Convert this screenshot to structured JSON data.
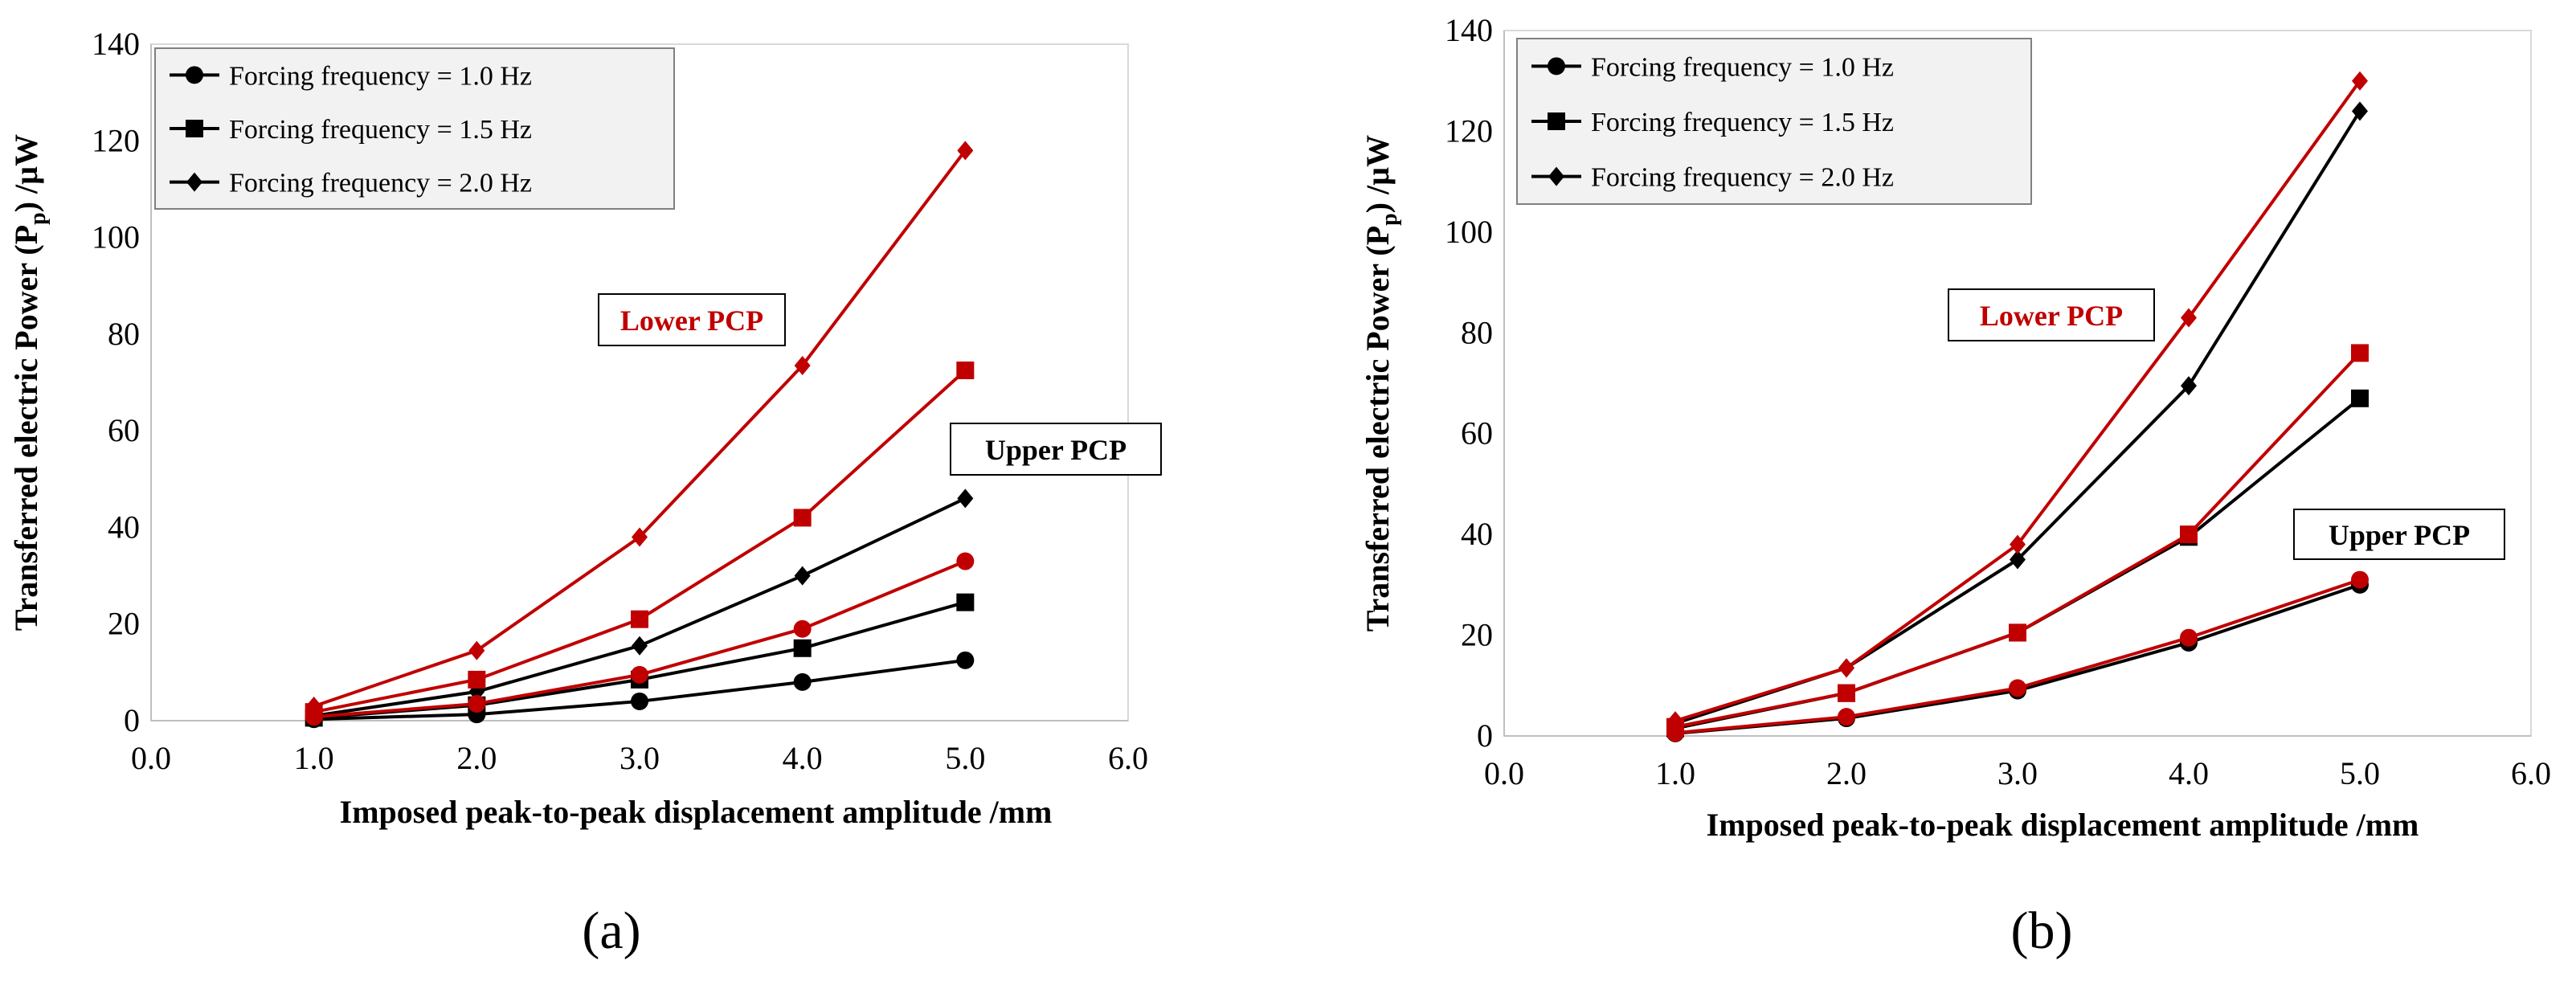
{
  "colors": {
    "upper": "#000000",
    "lower": "#C00000"
  },
  "chart_data": [
    {
      "type": "line",
      "panel_label": "(a)",
      "xlabel": "Imposed peak-to-peak displacement amplitude /mm",
      "ylabel_parts": {
        "main": "Transferred electric Power (P",
        "sub": "p",
        "tail": ") /µW"
      },
      "xlim": [
        0,
        6
      ],
      "ylim": [
        0,
        140
      ],
      "x_ticks": [
        "0.0",
        "1.0",
        "2.0",
        "3.0",
        "4.0",
        "5.0",
        "6.0"
      ],
      "y_ticks": [
        "0",
        "20",
        "40",
        "60",
        "80",
        "100",
        "120",
        "140"
      ],
      "x": [
        1.0,
        2.0,
        3.0,
        4.0,
        5.0
      ],
      "legend": [
        {
          "label": "Forcing frequency = 1.0 Hz",
          "marker": "circle"
        },
        {
          "label": "Forcing frequency = 1.5 Hz",
          "marker": "square"
        },
        {
          "label": "Forcing frequency = 2.0 Hz",
          "marker": "diamond"
        }
      ],
      "legend_position": "top-left",
      "grid": false,
      "annotations": [
        {
          "text": "Lower PCP",
          "group": "lower"
        },
        {
          "text": "Upper PCP",
          "group": "upper"
        }
      ],
      "series": [
        {
          "group": "upper",
          "marker": "circle",
          "values": [
            0.3,
            1.3,
            4.0,
            8.0,
            12.5
          ]
        },
        {
          "group": "upper",
          "marker": "square",
          "values": [
            0.6,
            3.2,
            8.5,
            15.0,
            24.5
          ]
        },
        {
          "group": "upper",
          "marker": "diamond",
          "values": [
            1.0,
            6.0,
            15.5,
            30.0,
            46.0
          ]
        },
        {
          "group": "lower",
          "marker": "circle",
          "values": [
            0.8,
            3.5,
            9.5,
            19.0,
            33.0
          ]
        },
        {
          "group": "lower",
          "marker": "square",
          "values": [
            1.8,
            8.5,
            21.0,
            42.0,
            72.5
          ]
        },
        {
          "group": "lower",
          "marker": "diamond",
          "values": [
            3.0,
            14.5,
            38.0,
            73.5,
            118.0
          ]
        }
      ]
    },
    {
      "type": "line",
      "panel_label": "(b)",
      "xlabel": "Imposed peak-to-peak displacement amplitude /mm",
      "ylabel_parts": {
        "main": "Transferred electric Power (P",
        "sub": "p",
        "tail": ") /µW"
      },
      "xlim": [
        0,
        6
      ],
      "ylim": [
        0,
        140
      ],
      "x_ticks": [
        "0.0",
        "1.0",
        "2.0",
        "3.0",
        "4.0",
        "5.0",
        "6.0"
      ],
      "y_ticks": [
        "0",
        "20",
        "40",
        "60",
        "80",
        "100",
        "120",
        "140"
      ],
      "x": [
        1.0,
        2.0,
        3.0,
        4.0,
        5.0
      ],
      "legend": [
        {
          "label": "Forcing frequency = 1.0 Hz",
          "marker": "circle"
        },
        {
          "label": "Forcing frequency = 1.5 Hz",
          "marker": "square"
        },
        {
          "label": "Forcing frequency = 2.0 Hz",
          "marker": "diamond"
        }
      ],
      "legend_position": "top-left",
      "grid": false,
      "annotations": [
        {
          "text": "Lower PCP",
          "group": "lower"
        },
        {
          "text": "Upper PCP",
          "group": "upper"
        }
      ],
      "series": [
        {
          "group": "upper",
          "marker": "circle",
          "values": [
            0.5,
            3.5,
            9.0,
            18.5,
            30.0
          ]
        },
        {
          "group": "upper",
          "marker": "square",
          "values": [
            1.5,
            8.5,
            20.5,
            39.5,
            67.0
          ]
        },
        {
          "group": "upper",
          "marker": "diamond",
          "values": [
            2.5,
            13.5,
            35.0,
            69.5,
            124.0
          ]
        },
        {
          "group": "lower",
          "marker": "circle",
          "values": [
            0.6,
            3.8,
            9.5,
            19.5,
            31.0
          ]
        },
        {
          "group": "lower",
          "marker": "square",
          "values": [
            1.8,
            8.5,
            20.5,
            40.0,
            76.0
          ]
        },
        {
          "group": "lower",
          "marker": "diamond",
          "values": [
            3.0,
            13.5,
            38.0,
            83.0,
            130.0
          ]
        }
      ]
    }
  ]
}
